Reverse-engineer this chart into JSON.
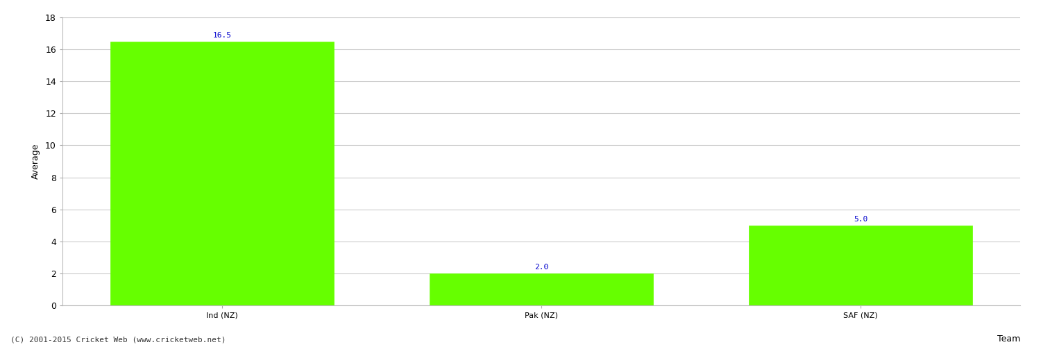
{
  "categories": [
    "Ind (NZ)",
    "Pak (NZ)",
    "SAF (NZ)"
  ],
  "values": [
    16.5,
    2.0,
    5.0
  ],
  "bar_color": "#66ff00",
  "bar_edge_color": "#66ff00",
  "value_color": "#0000cc",
  "value_fontsize": 8,
  "xlabel": "Team",
  "ylabel": "Average",
  "ylim": [
    0,
    18
  ],
  "yticks": [
    0,
    2,
    4,
    6,
    8,
    10,
    12,
    14,
    16,
    18
  ],
  "grid_color": "#cccccc",
  "background_color": "#ffffff",
  "footer": "(C) 2001-2015 Cricket Web (www.cricketweb.net)",
  "figsize": [
    15.0,
    5.0
  ],
  "dpi": 100
}
